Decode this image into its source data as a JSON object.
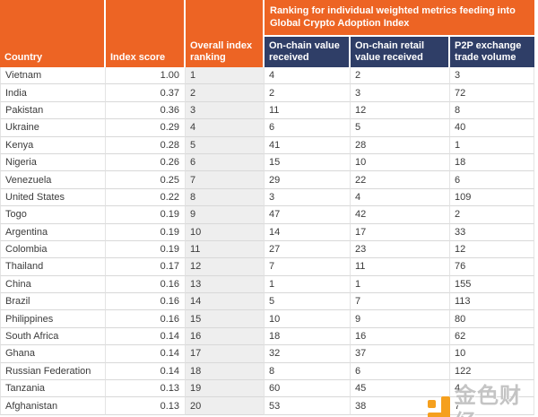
{
  "chart_data": {
    "type": "table",
    "banner": "Ranking for individual weighted metrics feeding into Global Crypto Adoption Index",
    "columns": [
      "Country",
      "Index score",
      "Overall index ranking",
      "On-chain value received",
      "On-chain retail value received",
      "P2P exchange trade volume"
    ],
    "rows": [
      [
        "Vietnam",
        "1.00",
        "1",
        "4",
        "2",
        "3"
      ],
      [
        "India",
        "0.37",
        "2",
        "2",
        "3",
        "72"
      ],
      [
        "Pakistan",
        "0.36",
        "3",
        "11",
        "12",
        "8"
      ],
      [
        "Ukraine",
        "0.29",
        "4",
        "6",
        "5",
        "40"
      ],
      [
        "Kenya",
        "0.28",
        "5",
        "41",
        "28",
        "1"
      ],
      [
        "Nigeria",
        "0.26",
        "6",
        "15",
        "10",
        "18"
      ],
      [
        "Venezuela",
        "0.25",
        "7",
        "29",
        "22",
        "6"
      ],
      [
        "United States",
        "0.22",
        "8",
        "3",
        "4",
        "109"
      ],
      [
        "Togo",
        "0.19",
        "9",
        "47",
        "42",
        "2"
      ],
      [
        "Argentina",
        "0.19",
        "10",
        "14",
        "17",
        "33"
      ],
      [
        "Colombia",
        "0.19",
        "11",
        "27",
        "23",
        "12"
      ],
      [
        "Thailand",
        "0.17",
        "12",
        "7",
        "11",
        "76"
      ],
      [
        "China",
        "0.16",
        "13",
        "1",
        "1",
        "155"
      ],
      [
        "Brazil",
        "0.16",
        "14",
        "5",
        "7",
        "113"
      ],
      [
        "Philippines",
        "0.16",
        "15",
        "10",
        "9",
        "80"
      ],
      [
        "South Africa",
        "0.14",
        "16",
        "18",
        "16",
        "62"
      ],
      [
        "Ghana",
        "0.14",
        "17",
        "32",
        "37",
        "10"
      ],
      [
        "Russian Federation",
        "0.14",
        "18",
        "8",
        "6",
        "122"
      ],
      [
        "Tanzania",
        "0.13",
        "19",
        "60",
        "45",
        "4"
      ],
      [
        "Afghanistan",
        "0.13",
        "20",
        "53",
        "38",
        "7"
      ]
    ]
  },
  "watermark": {
    "text": "金色财经",
    "logo": "jinse-finance-logo"
  },
  "colors": {
    "header_orange": "#ED6424",
    "header_navy": "#2F3E67",
    "rank_column_bg": "#EEEEEE",
    "row_border": "#D8D8D8",
    "body_text": "#3B3B3B",
    "watermark_gold": "#F5A01E",
    "watermark_gray": "#BABABA"
  }
}
